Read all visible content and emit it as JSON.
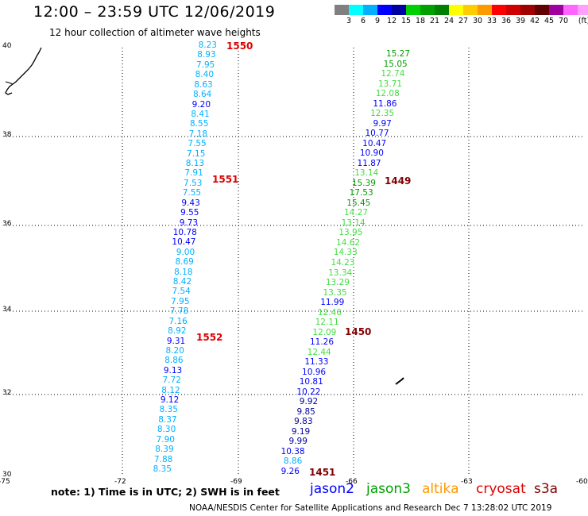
{
  "title": "12:00 – 23:59 UTC 12/06/2019",
  "subtitle": "12 hour collection of altimeter wave heights",
  "legend": {
    "colors": [
      "#808080",
      "#00ffff",
      "#00b0ff",
      "#0000ff",
      "#0000a0",
      "#00d000",
      "#00a000",
      "#008000",
      "#ffff00",
      "#ffcc00",
      "#ff9900",
      "#ff0000",
      "#d00000",
      "#a00000",
      "#600000",
      "#a000a0",
      "#ff66ff",
      "#ffa0ff",
      "#000000"
    ],
    "labels": [
      "3",
      "6",
      "9",
      "12",
      "15",
      "18",
      "21",
      "24",
      "27",
      "30",
      "33",
      "36",
      "39",
      "42",
      "45",
      "70",
      "(ft)"
    ]
  },
  "axes": {
    "lat_labels": [
      "40",
      "38",
      "36",
      "34",
      "32",
      "30"
    ],
    "lon_labels": [
      "-75",
      "-72",
      "-69",
      "-66",
      "-63",
      "-60"
    ]
  },
  "pass_labels": [
    {
      "text": "1550",
      "color": "#dd0000"
    },
    {
      "text": "1551",
      "color": "#dd0000"
    },
    {
      "text": "1552",
      "color": "#dd0000"
    },
    {
      "text": "1449",
      "color": "#800000"
    },
    {
      "text": "1450",
      "color": "#800000"
    },
    {
      "text": "1451",
      "color": "#800000"
    }
  ],
  "track_left": [
    {
      "v": "8.23",
      "c": "#00b0ff"
    },
    {
      "v": "8.93",
      "c": "#00b0ff"
    },
    {
      "v": "7.95",
      "c": "#00b0ff"
    },
    {
      "v": "8.40",
      "c": "#00b0ff"
    },
    {
      "v": "8.63",
      "c": "#00b0ff"
    },
    {
      "v": "8.64",
      "c": "#00b0ff"
    },
    {
      "v": "9.20",
      "c": "#0000ff"
    },
    {
      "v": "8.41",
      "c": "#00b0ff"
    },
    {
      "v": "8.55",
      "c": "#00b0ff"
    },
    {
      "v": "7.18",
      "c": "#00b0ff"
    },
    {
      "v": "7.55",
      "c": "#00b0ff"
    },
    {
      "v": "7.15",
      "c": "#00b0ff"
    },
    {
      "v": "8.13",
      "c": "#00b0ff"
    },
    {
      "v": "7.91",
      "c": "#00b0ff"
    },
    {
      "v": "7.53",
      "c": "#00b0ff"
    },
    {
      "v": "7.55",
      "c": "#00b0ff"
    },
    {
      "v": "9.43",
      "c": "#0000ff"
    },
    {
      "v": "9.55",
      "c": "#0000ff"
    },
    {
      "v": "9.73",
      "c": "#0000ff"
    },
    {
      "v": "10.78",
      "c": "#0000ff"
    },
    {
      "v": "10.47",
      "c": "#0000ff"
    },
    {
      "v": "9.00",
      "c": "#00b0ff"
    },
    {
      "v": "8.69",
      "c": "#00b0ff"
    },
    {
      "v": "8.18",
      "c": "#00b0ff"
    },
    {
      "v": "8.42",
      "c": "#00b0ff"
    },
    {
      "v": "7.54",
      "c": "#00b0ff"
    },
    {
      "v": "7.95",
      "c": "#00b0ff"
    },
    {
      "v": "7.78",
      "c": "#00b0ff"
    },
    {
      "v": "7.16",
      "c": "#00b0ff"
    },
    {
      "v": "8.92",
      "c": "#00b0ff"
    },
    {
      "v": "9.31",
      "c": "#0000ff"
    },
    {
      "v": "8.20",
      "c": "#00b0ff"
    },
    {
      "v": "8.86",
      "c": "#00b0ff"
    },
    {
      "v": "9.13",
      "c": "#0000ff"
    },
    {
      "v": "7.72",
      "c": "#00b0ff"
    },
    {
      "v": "8.12",
      "c": "#00b0ff"
    },
    {
      "v": "9.12",
      "c": "#0000ff"
    },
    {
      "v": "8.35",
      "c": "#00b0ff"
    },
    {
      "v": "8.37",
      "c": "#00b0ff"
    },
    {
      "v": "8.30",
      "c": "#00b0ff"
    },
    {
      "v": "7.90",
      "c": "#00b0ff"
    },
    {
      "v": "8.39",
      "c": "#00b0ff"
    },
    {
      "v": "7.88",
      "c": "#00b0ff"
    },
    {
      "v": "8.35",
      "c": "#00b0ff"
    }
  ],
  "track_right": [
    {
      "v": "15.27",
      "c": "#00a000"
    },
    {
      "v": "15.05",
      "c": "#00a000"
    },
    {
      "v": "12.74",
      "c": "#44dd44"
    },
    {
      "v": "13.71",
      "c": "#44dd44"
    },
    {
      "v": "12.08",
      "c": "#44dd44"
    },
    {
      "v": "11.86",
      "c": "#0000ff"
    },
    {
      "v": "12.35",
      "c": "#44dd44"
    },
    {
      "v": "9.97",
      "c": "#0000ff"
    },
    {
      "v": "10.77",
      "c": "#0000ff"
    },
    {
      "v": "10.47",
      "c": "#0000ff"
    },
    {
      "v": "10.90",
      "c": "#0000ff"
    },
    {
      "v": "11.87",
      "c": "#0000ff"
    },
    {
      "v": "13.14",
      "c": "#44dd44"
    },
    {
      "v": "15.39",
      "c": "#00a000"
    },
    {
      "v": "17.53",
      "c": "#00a000"
    },
    {
      "v": "15.45",
      "c": "#00a000"
    },
    {
      "v": "14.27",
      "c": "#44dd44"
    },
    {
      "v": "13.14",
      "c": "#44dd44"
    },
    {
      "v": "13.95",
      "c": "#44dd44"
    },
    {
      "v": "14.62",
      "c": "#44dd44"
    },
    {
      "v": "14.33",
      "c": "#44dd44"
    },
    {
      "v": "14.23",
      "c": "#44dd44"
    },
    {
      "v": "13.34",
      "c": "#44dd44"
    },
    {
      "v": "13.29",
      "c": "#44dd44"
    },
    {
      "v": "13.35",
      "c": "#44dd44"
    },
    {
      "v": "11.99",
      "c": "#0000ff"
    },
    {
      "v": "12.46",
      "c": "#44dd44"
    },
    {
      "v": "12.11",
      "c": "#44dd44"
    },
    {
      "v": "12.09",
      "c": "#44dd44"
    },
    {
      "v": "11.26",
      "c": "#0000ff"
    },
    {
      "v": "12.44",
      "c": "#44dd44"
    },
    {
      "v": "11.33",
      "c": "#0000ff"
    },
    {
      "v": "10.96",
      "c": "#0000ff"
    },
    {
      "v": "10.81",
      "c": "#0000ff"
    },
    {
      "v": "10.22",
      "c": "#0000ff"
    },
    {
      "v": "9.92",
      "c": "#0000a0"
    },
    {
      "v": "9.85",
      "c": "#0000a0"
    },
    {
      "v": "9.83",
      "c": "#0000a0"
    },
    {
      "v": "9.19",
      "c": "#0000a0"
    },
    {
      "v": "9.99",
      "c": "#0000a0"
    },
    {
      "v": "10.38",
      "c": "#0000ff"
    },
    {
      "v": "8.86",
      "c": "#00b0ff"
    },
    {
      "v": "9.26",
      "c": "#0000ff"
    }
  ],
  "note": "note: 1) Time is in UTC; 2) SWH is in feet",
  "satellites": [
    {
      "name": "jason2",
      "color": "#0000ff"
    },
    {
      "name": "jason3",
      "color": "#00a000"
    },
    {
      "name": "altika",
      "color": "#ff9900"
    },
    {
      "name": "cryosat",
      "color": "#dd0000"
    },
    {
      "name": "s3a",
      "color": "#800000"
    }
  ],
  "footer": "NOAA/NESDIS Center for Satellite Applications and Research   Dec  7 13:28:02 UTC 2019"
}
